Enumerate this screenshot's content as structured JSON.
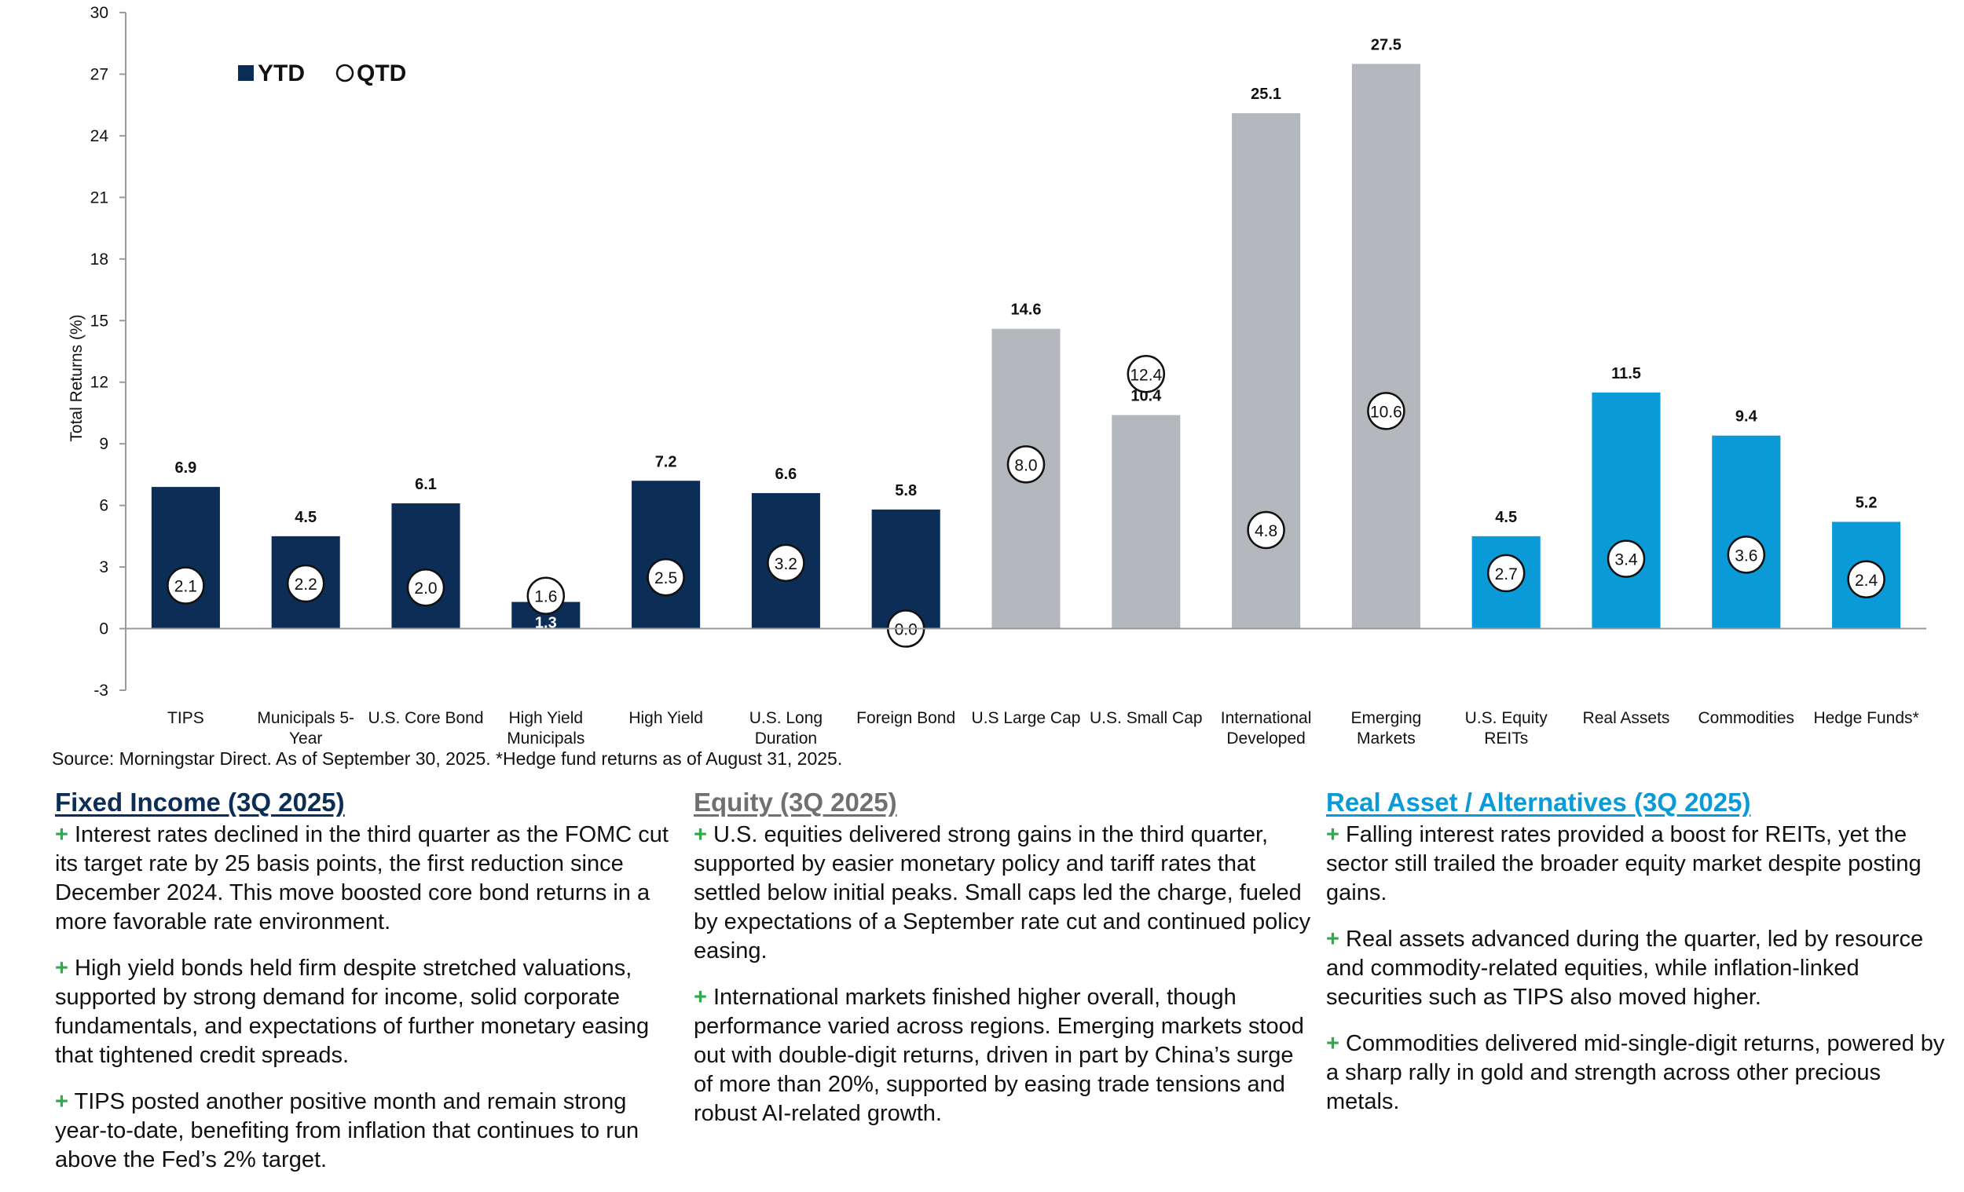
{
  "chart_data": {
    "type": "bar",
    "ylabel": "Total Returns (%)",
    "ylim": [
      -3,
      30
    ],
    "yticks": [
      -3,
      0,
      3,
      6,
      9,
      12,
      15,
      18,
      21,
      24,
      27,
      30
    ],
    "legend": {
      "placement": "top-left",
      "items": [
        "YTD",
        "QTD"
      ]
    },
    "categories": [
      [
        "TIPS"
      ],
      [
        "Municipals 5-",
        "Year"
      ],
      [
        "U.S. Core Bond"
      ],
      [
        "High Yield",
        "Municipals"
      ],
      [
        "High Yield"
      ],
      [
        "U.S. Long",
        "Duration"
      ],
      [
        "Foreign Bond"
      ],
      [
        "U.S Large Cap"
      ],
      [
        "U.S. Small Cap"
      ],
      [
        "International",
        "Developed"
      ],
      [
        "Emerging",
        "Markets"
      ],
      [
        "U.S. Equity",
        "REITs"
      ],
      [
        "Real Assets"
      ],
      [
        "Commodities"
      ],
      [
        "Hedge Funds*"
      ]
    ],
    "series": [
      {
        "name": "YTD",
        "values": [
          6.9,
          4.5,
          6.1,
          1.3,
          7.2,
          6.6,
          5.8,
          14.6,
          10.4,
          25.1,
          27.5,
          4.5,
          11.5,
          9.4,
          5.2
        ]
      },
      {
        "name": "QTD",
        "values": [
          2.1,
          2.2,
          2.0,
          1.6,
          2.5,
          3.2,
          0.0,
          8.0,
          12.4,
          4.8,
          10.6,
          2.7,
          3.4,
          3.6,
          2.4
        ]
      }
    ],
    "ytd_labels": [
      "6.9",
      "4.5",
      "6.1",
      "1.3",
      "7.2",
      "6.6",
      "5.8",
      "14.6",
      "10.4",
      "25.1",
      "27.5",
      "4.5",
      "11.5",
      "9.4",
      "5.2"
    ],
    "qtd_labels": [
      "2.1",
      "2.2",
      "2.0",
      "1.6",
      "2.5",
      "3.2",
      "0.0",
      "8.0",
      "12.4",
      "4.8",
      "10.6",
      "2.7",
      "3.4",
      "3.6",
      "2.4"
    ],
    "bar_colors": [
      "#0c2d55",
      "#0c2d55",
      "#0c2d55",
      "#0c2d55",
      "#0c2d55",
      "#0c2d55",
      "#0c2d55",
      "#b4b7bc",
      "#b4b7bc",
      "#b4b7bc",
      "#b4b7bc",
      "#0a9ad8",
      "#0a9ad8",
      "#0a9ad8",
      "#0a9ad8"
    ]
  },
  "source": "Source: Morningstar Direct. As of September 30, 2025. *Hedge fund returns as of August 31, 2025.",
  "colors": {
    "fixed": "#0c2d55",
    "equity": "#707070",
    "alts": "#0a9ad8",
    "plus": "#2eaa4a"
  },
  "sections": {
    "fixed_income": {
      "title": "Fixed Income (3Q 2025)",
      "bullets": [
        "Interest rates declined in the third quarter as the FOMC cut its target rate by 25 basis points, the first reduction since December 2024. This move boosted core bond returns in a more favorable rate environment.",
        "High yield bonds held firm despite stretched valuations, supported by strong demand for income, solid corporate fundamentals, and expectations of further monetary easing that tightened credit spreads.",
        "TIPS posted another positive month and remain strong year-to-date, benefiting from inflation that continues to run above the Fed’s 2% target."
      ]
    },
    "equity": {
      "title": "Equity (3Q 2025)",
      "bullets": [
        "U.S. equities delivered strong gains in the third quarter, supported by easier monetary policy and tariff rates that settled below initial peaks. Small caps led the charge, fueled by expectations of a September rate cut and continued policy easing.",
        "International markets finished higher overall, though performance varied across regions. Emerging markets stood out with double-digit returns, driven in part by China’s surge of more than 20%, supported by easing trade tensions and robust AI-related growth."
      ]
    },
    "alternatives": {
      "title": "Real Asset / Alternatives (3Q 2025)",
      "bullets": [
        "Falling interest rates provided a boost for REITs, yet the sector still trailed the broader equity market despite posting gains.",
        "Real assets advanced during the quarter, led by resource and commodity-related equities, while inflation-linked securities such as TIPS also moved higher.",
        "Commodities delivered mid-single-digit returns, powered by a sharp rally in gold and strength across other precious metals."
      ]
    },
    "plus_sign": "+"
  }
}
